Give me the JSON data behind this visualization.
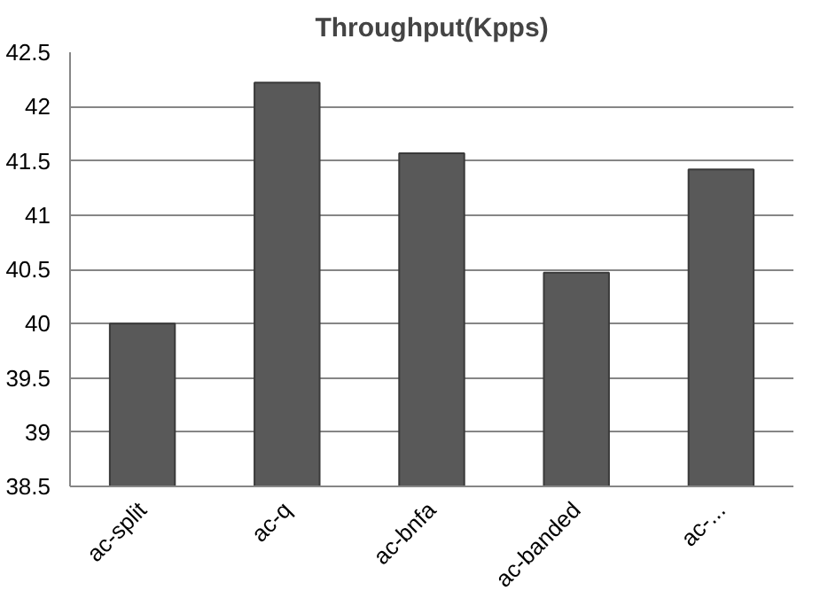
{
  "chart_data": {
    "type": "bar",
    "title": "Throughput(Kpps)",
    "categories": [
      "ac-split",
      "ac-q",
      "ac-bnfa",
      "ac-banded",
      "ac-..."
    ],
    "values": [
      40.0,
      42.22,
      41.57,
      40.47,
      41.42
    ],
    "color": "#595959",
    "ylim": [
      38.5,
      42.5
    ],
    "yticks": [
      38.5,
      39,
      39.5,
      40,
      40.5,
      41,
      41.5,
      42,
      42.5
    ],
    "grid": "y"
  }
}
